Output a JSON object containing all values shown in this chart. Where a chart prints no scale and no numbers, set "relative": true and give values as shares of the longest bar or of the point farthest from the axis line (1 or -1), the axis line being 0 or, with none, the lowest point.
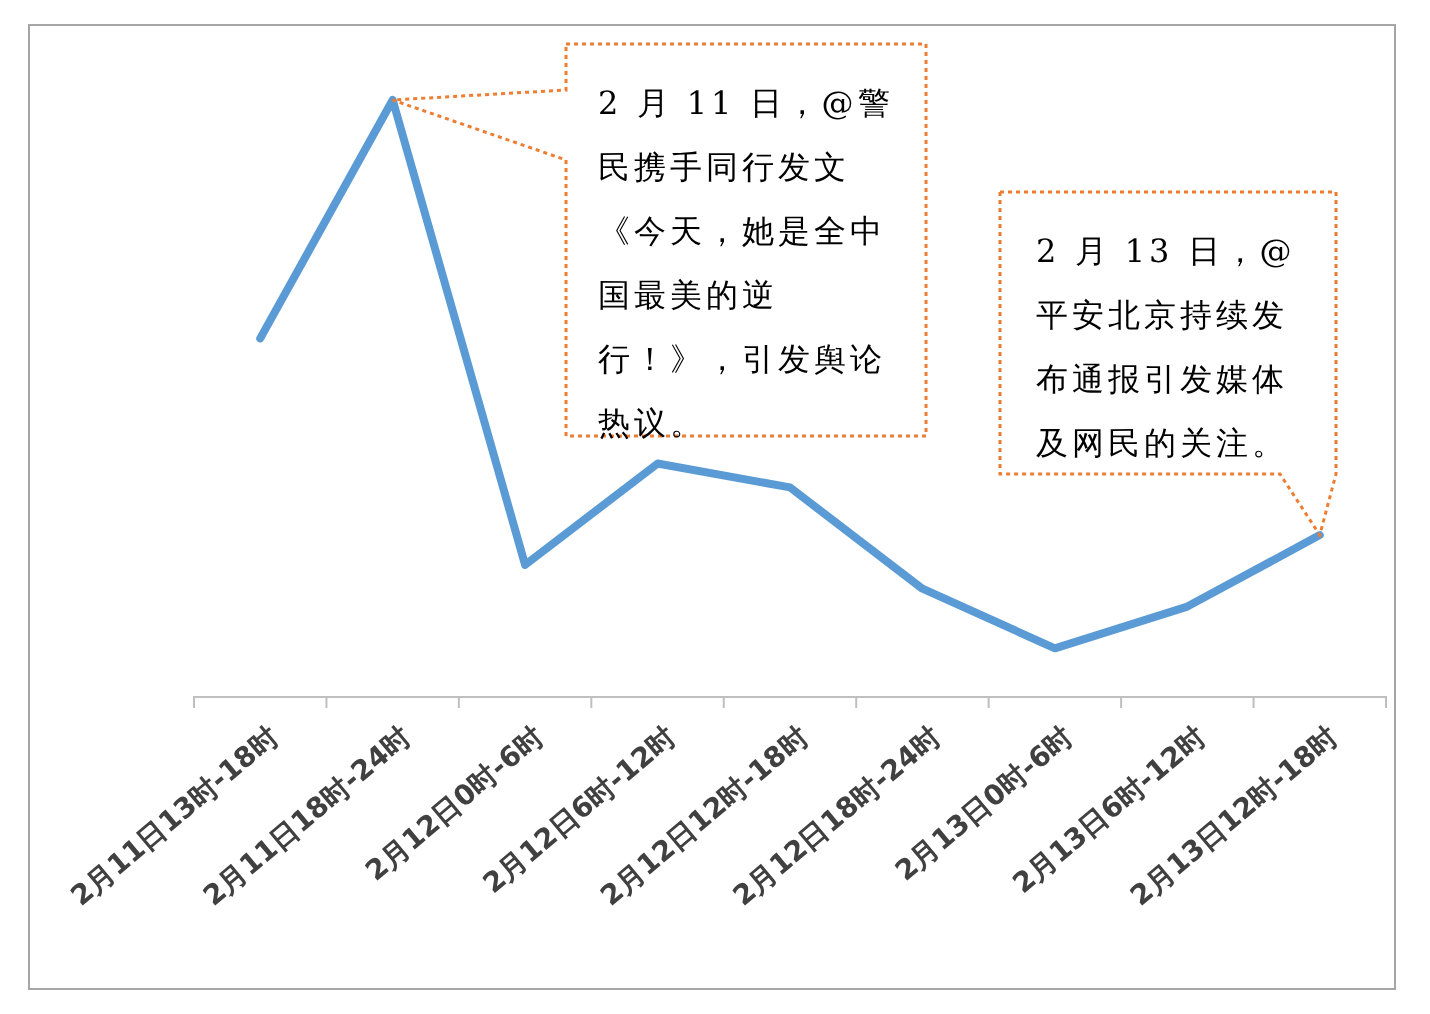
{
  "chart_data": {
    "type": "line",
    "relative": true,
    "color": "#5b9bd5",
    "categories": [
      "2月11日13时-18时",
      "2月11日18时-24时",
      "2月12日0时-6时",
      "2月12日6时-12时",
      "2月12日12时-18时",
      "2月12日18时-24时",
      "2月13日0时-6时",
      "2月13日6时-12时",
      "2月13日12时-18时"
    ],
    "values": [
      0.6,
      1,
      0.22,
      0.39,
      0.35,
      0.18,
      0.08,
      0.15,
      0.27
    ],
    "annotations": [
      "2 月 11 日，@警民携手同行发文《今天，她是全中国最美的逆行！》，引发舆论热议。",
      "2 月 13 日，@平安北京持续发布通报引发媒体及网民的关注。"
    ]
  }
}
